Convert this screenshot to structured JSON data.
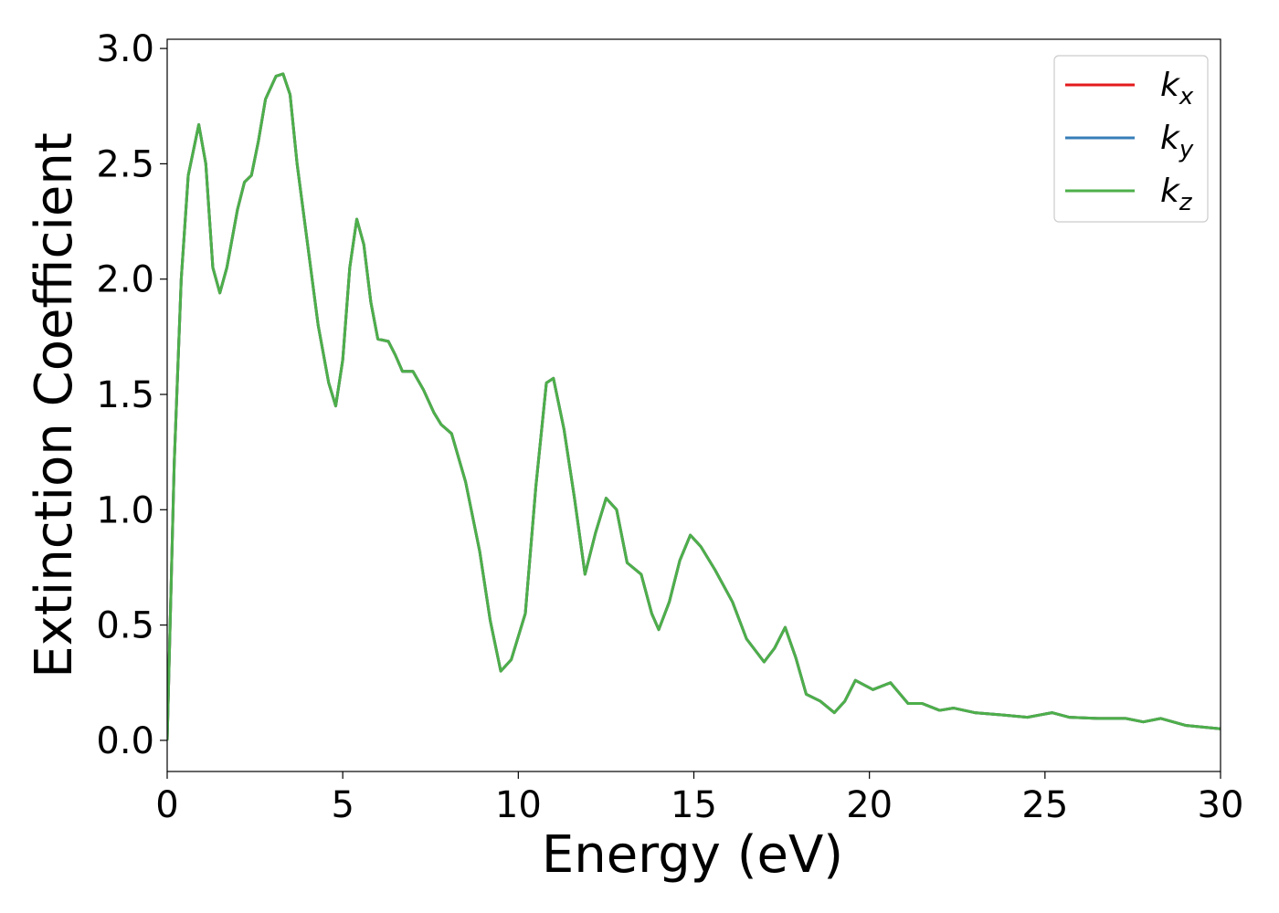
{
  "chart_data": {
    "type": "line",
    "xlabel": "Energy (eV)",
    "ylabel": "Extinction Coefficient",
    "x": [
      0,
      0.2,
      0.4,
      0.6,
      0.9,
      1.1,
      1.3,
      1.5,
      1.7,
      2.0,
      2.2,
      2.4,
      2.6,
      2.8,
      3.1,
      3.3,
      3.5,
      3.7,
      4.0,
      4.3,
      4.6,
      4.8,
      5.0,
      5.2,
      5.4,
      5.6,
      5.8,
      6.0,
      6.3,
      6.5,
      6.7,
      7.0,
      7.3,
      7.6,
      7.8,
      8.1,
      8.5,
      8.9,
      9.2,
      9.5,
      9.8,
      10.2,
      10.5,
      10.8,
      11.0,
      11.3,
      11.6,
      11.9,
      12.2,
      12.5,
      12.8,
      13.1,
      13.5,
      13.8,
      14.0,
      14.3,
      14.6,
      14.9,
      15.2,
      15.6,
      16.1,
      16.5,
      17.0,
      17.3,
      17.6,
      17.9,
      18.2,
      18.6,
      19.0,
      19.3,
      19.6,
      20.1,
      20.6,
      21.1,
      21.5,
      22.0,
      22.4,
      23.0,
      23.8,
      24.5,
      25.2,
      25.7,
      26.5,
      27.3,
      27.8,
      28.3,
      29.0,
      30
    ],
    "series": [
      {
        "name": "kx",
        "color": "#e41a1c",
        "values": [
          0.0,
          1.2,
          2.0,
          2.45,
          2.67,
          2.5,
          2.05,
          1.94,
          2.05,
          2.3,
          2.42,
          2.45,
          2.6,
          2.78,
          2.88,
          2.89,
          2.8,
          2.5,
          2.15,
          1.8,
          1.55,
          1.45,
          1.65,
          2.05,
          2.26,
          2.15,
          1.9,
          1.74,
          1.73,
          1.67,
          1.6,
          1.6,
          1.52,
          1.42,
          1.37,
          1.33,
          1.12,
          0.82,
          0.52,
          0.3,
          0.35,
          0.55,
          1.1,
          1.55,
          1.57,
          1.35,
          1.05,
          0.72,
          0.9,
          1.05,
          1.0,
          0.77,
          0.72,
          0.55,
          0.48,
          0.6,
          0.78,
          0.89,
          0.84,
          0.74,
          0.6,
          0.44,
          0.34,
          0.4,
          0.49,
          0.36,
          0.2,
          0.17,
          0.12,
          0.17,
          0.26,
          0.22,
          0.25,
          0.16,
          0.16,
          0.13,
          0.14,
          0.12,
          0.11,
          0.1,
          0.12,
          0.1,
          0.095,
          0.095,
          0.08,
          0.095,
          0.065,
          0.05
        ]
      },
      {
        "name": "ky",
        "color": "#377eb8",
        "values": [
          0.0,
          1.2,
          2.0,
          2.45,
          2.67,
          2.5,
          2.05,
          1.94,
          2.05,
          2.3,
          2.42,
          2.45,
          2.6,
          2.78,
          2.88,
          2.89,
          2.8,
          2.5,
          2.15,
          1.8,
          1.55,
          1.45,
          1.65,
          2.05,
          2.26,
          2.15,
          1.9,
          1.74,
          1.73,
          1.67,
          1.6,
          1.6,
          1.52,
          1.42,
          1.37,
          1.33,
          1.12,
          0.82,
          0.52,
          0.3,
          0.35,
          0.55,
          1.1,
          1.55,
          1.57,
          1.35,
          1.05,
          0.72,
          0.9,
          1.05,
          1.0,
          0.77,
          0.72,
          0.55,
          0.48,
          0.6,
          0.78,
          0.89,
          0.84,
          0.74,
          0.6,
          0.44,
          0.34,
          0.4,
          0.49,
          0.36,
          0.2,
          0.17,
          0.12,
          0.17,
          0.26,
          0.22,
          0.25,
          0.16,
          0.16,
          0.13,
          0.14,
          0.12,
          0.11,
          0.1,
          0.12,
          0.1,
          0.095,
          0.095,
          0.08,
          0.095,
          0.065,
          0.05
        ]
      },
      {
        "name": "kz",
        "color": "#4daf4a",
        "values": [
          0.0,
          1.2,
          2.0,
          2.45,
          2.67,
          2.5,
          2.05,
          1.94,
          2.05,
          2.3,
          2.42,
          2.45,
          2.6,
          2.78,
          2.88,
          2.89,
          2.8,
          2.5,
          2.15,
          1.8,
          1.55,
          1.45,
          1.65,
          2.05,
          2.26,
          2.15,
          1.9,
          1.74,
          1.73,
          1.67,
          1.6,
          1.6,
          1.52,
          1.42,
          1.37,
          1.33,
          1.12,
          0.82,
          0.52,
          0.3,
          0.35,
          0.55,
          1.1,
          1.55,
          1.57,
          1.35,
          1.05,
          0.72,
          0.9,
          1.05,
          1.0,
          0.77,
          0.72,
          0.55,
          0.48,
          0.6,
          0.78,
          0.89,
          0.84,
          0.74,
          0.6,
          0.44,
          0.34,
          0.4,
          0.49,
          0.36,
          0.2,
          0.17,
          0.12,
          0.17,
          0.26,
          0.22,
          0.25,
          0.16,
          0.16,
          0.13,
          0.14,
          0.12,
          0.11,
          0.1,
          0.12,
          0.1,
          0.095,
          0.095,
          0.08,
          0.095,
          0.065,
          0.05
        ]
      }
    ],
    "xlim": [
      0,
      30
    ],
    "xticks": [
      0,
      5,
      10,
      15,
      20,
      25,
      30
    ],
    "ylim": [
      -0.135,
      3.04
    ],
    "yticks": [
      {
        "value": 0,
        "label": "0.0"
      },
      0.5,
      {
        "value": 1,
        "label": "1.0"
      },
      1.5,
      {
        "value": 2,
        "label": "2.0"
      },
      2.5,
      {
        "value": 3,
        "label": "3.0"
      }
    ],
    "legend": "upper right",
    "grid": false
  }
}
